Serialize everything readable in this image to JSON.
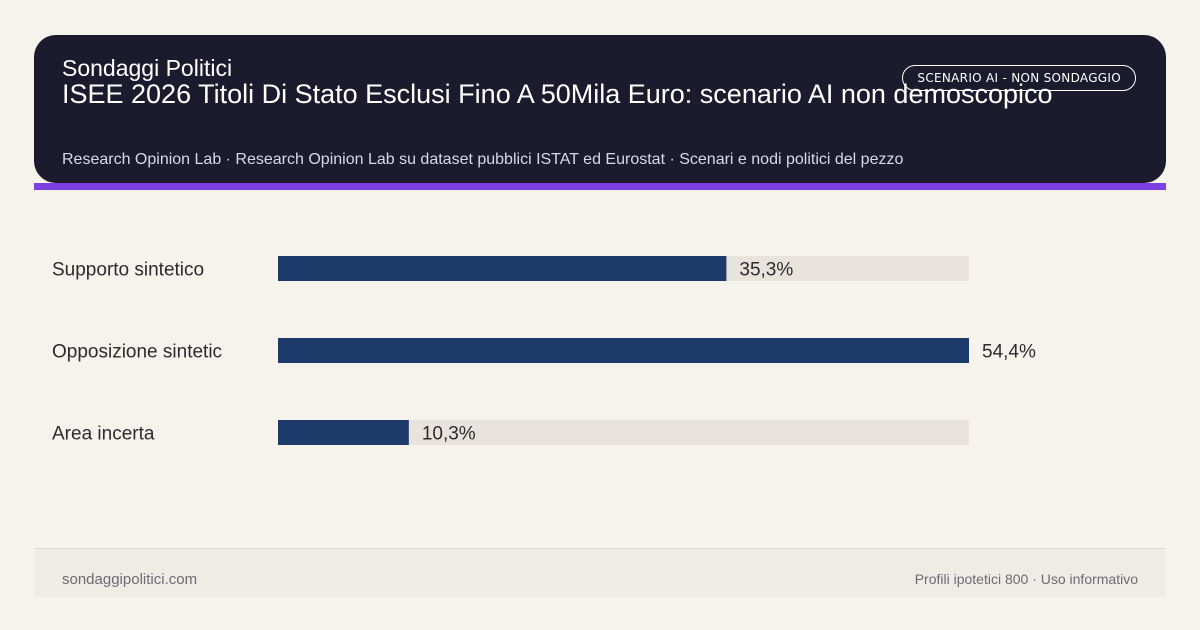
{
  "header": {
    "badge": "SCENARIO AI - NON SONDAGGIO",
    "brand": "Sondaggi Politici",
    "title": "ISEE 2026 Titoli Di Stato Esclusi Fino A 50Mila Euro: scenario AI non demoscopico",
    "subtitle": "Research Opinion Lab · Research Opinion Lab su dataset pubblici ISTAT ed Eurostat · Scenari e nodi politici del pezzo"
  },
  "colors": {
    "header_bg": "#1c1b2e",
    "accent": "#7b3fe4",
    "bar": "#1e3a6b",
    "track": "#e8e3dc",
    "page_bg": "#f6f3ec"
  },
  "chart_data": {
    "type": "bar",
    "orientation": "horizontal",
    "categories": [
      "Supporto sintetico",
      "Opposizione sintetic",
      "Area incerta"
    ],
    "values": [
      35.3,
      54.4,
      10.3
    ],
    "value_labels": [
      "35,3%",
      "54,4%",
      "10,3%"
    ],
    "xlim": [
      0,
      54.4
    ],
    "grid": false
  },
  "footer": {
    "left": "sondaggipolitici.com",
    "right": "Profili ipotetici 800 · Uso informativo"
  }
}
